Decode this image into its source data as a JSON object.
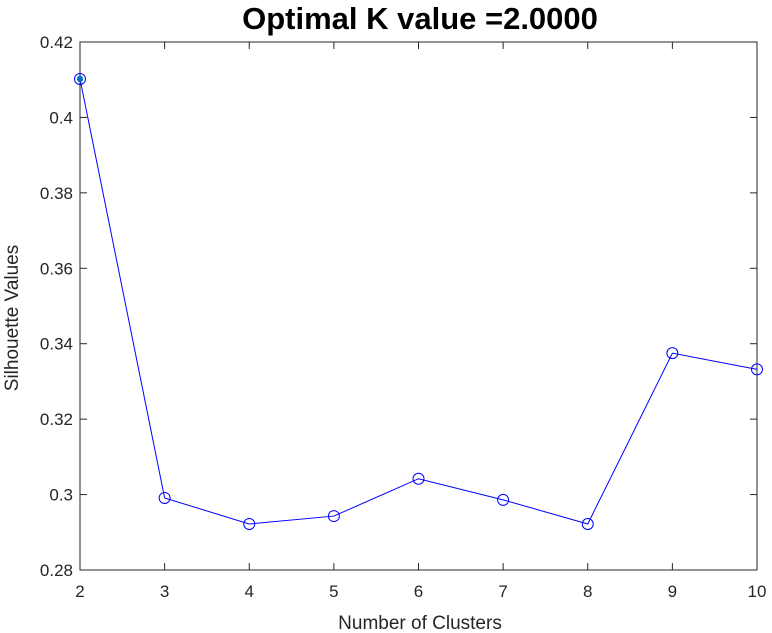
{
  "chart_data": {
    "type": "line",
    "title": "Optimal K value =2.0000",
    "xlabel": "Number of Clusters",
    "ylabel": "Silhouette Values",
    "x": [
      2,
      3,
      4,
      5,
      6,
      7,
      8,
      9,
      10
    ],
    "xlim": [
      2,
      10
    ],
    "ylim": [
      0.28,
      0.42
    ],
    "xticks": [
      "2",
      "3",
      "4",
      "5",
      "6",
      "7",
      "8",
      "9",
      "10"
    ],
    "yticks": [
      "0.28",
      "0.3",
      "0.32",
      "0.34",
      "0.36",
      "0.38",
      "0.4",
      "0.42"
    ],
    "grid": false,
    "series": [
      {
        "values": [
          0.4102,
          0.2991,
          0.2922,
          0.2943,
          0.3042,
          0.2986,
          0.2922,
          0.3375,
          0.3332
        ],
        "color": "#0000ff",
        "marker": "circle"
      }
    ],
    "highlight": {
      "x": 2,
      "marker": "filled-dot",
      "color": "#0072bd"
    }
  }
}
